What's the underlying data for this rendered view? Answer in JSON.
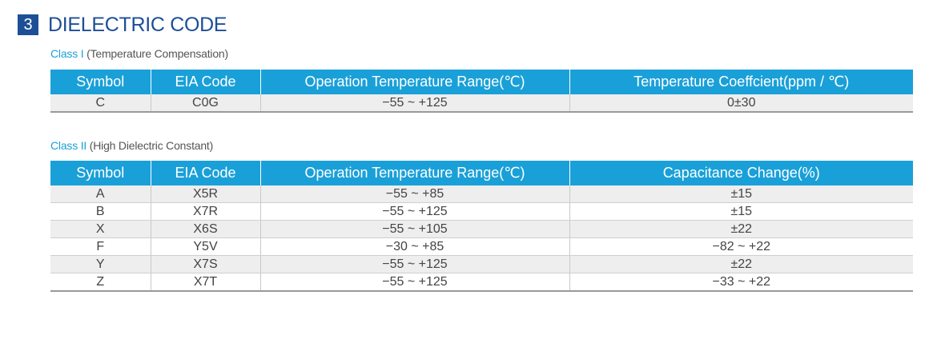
{
  "section": {
    "number": "3",
    "title": "DIELECTRIC CODE"
  },
  "class1": {
    "name": "Class I",
    "description": "(Temperature Compensation)",
    "headers": [
      "Symbol",
      "EIA Code",
      "Operation Temperature Range(℃)",
      "Temperature Coeffcient(ppm / ℃)"
    ],
    "rows": [
      [
        "C",
        "C0G",
        "−55 ~ +125",
        "0±30"
      ]
    ]
  },
  "class2": {
    "name": "Class II",
    "description": "(High Dielectric Constant)",
    "headers": [
      "Symbol",
      "EIA Code",
      "Operation Temperature Range(℃)",
      "Capacitance Change(%)"
    ],
    "rows": [
      [
        "A",
        "X5R",
        "−55 ~ +85",
        "±15"
      ],
      [
        "B",
        "X7R",
        "−55 ~ +125",
        "±15"
      ],
      [
        "X",
        "X6S",
        "−55 ~ +105",
        "±22"
      ],
      [
        "F",
        "Y5V",
        "−30 ~ +85",
        "−82 ~ +22"
      ],
      [
        "Y",
        "X7S",
        "−55 ~ +125",
        "±22"
      ],
      [
        "Z",
        "X7T",
        "−55 ~ +125",
        "−33 ~ +22"
      ]
    ]
  }
}
